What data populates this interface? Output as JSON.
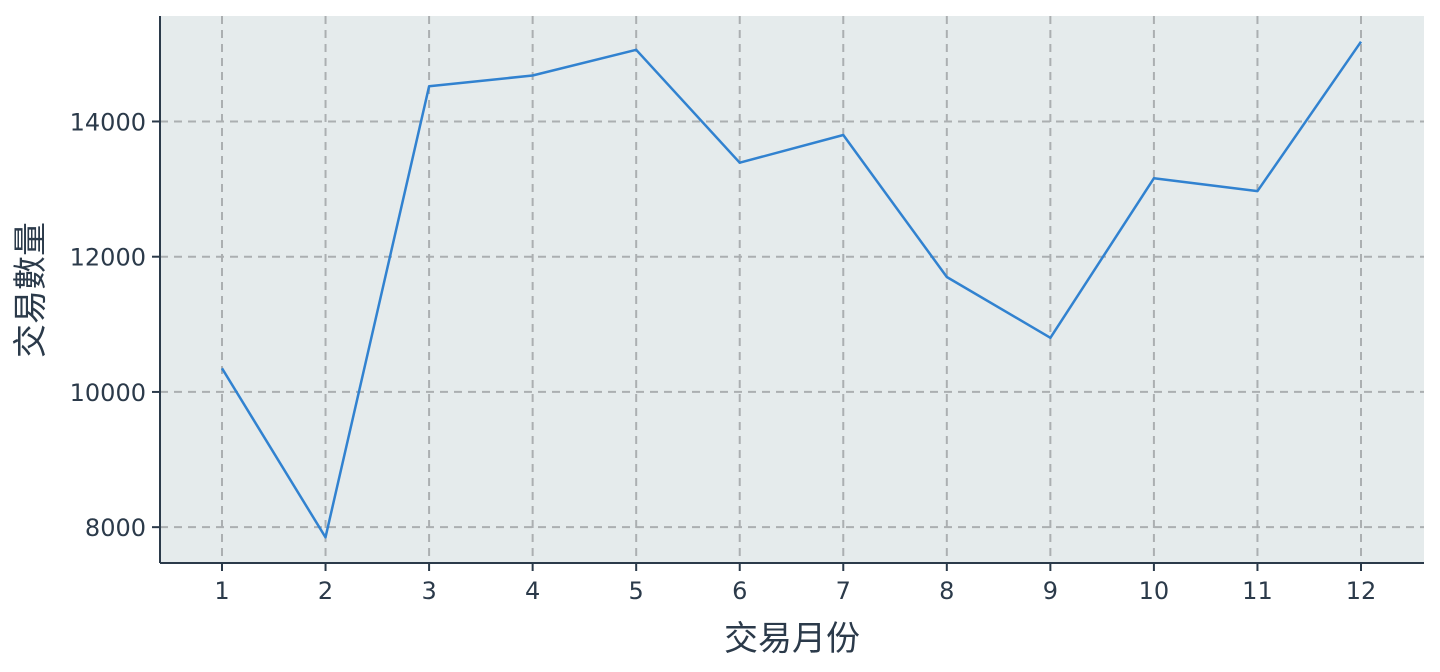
{
  "chart_data": {
    "type": "line",
    "x": [
      "1",
      "2",
      "3",
      "4",
      "5",
      "6",
      "7",
      "8",
      "9",
      "10",
      "11",
      "12"
    ],
    "series": [
      {
        "values": [
          10350,
          7850,
          14520,
          14680,
          15060,
          13390,
          13800,
          11700,
          10800,
          13160,
          12970,
          15180
        ],
        "color": "#3182d0"
      }
    ],
    "xlabel": "交易月份",
    "ylabel": "交易數量",
    "yticks": [
      8000,
      10000,
      12000,
      14000
    ],
    "ylim": [
      7470,
      15560
    ],
    "grid": true,
    "legend": "none",
    "colors": {
      "plot_background": "#e5ebec",
      "grid": "#abafb1",
      "axis": "#2b3a4a",
      "text": "#2b3a4a"
    }
  }
}
